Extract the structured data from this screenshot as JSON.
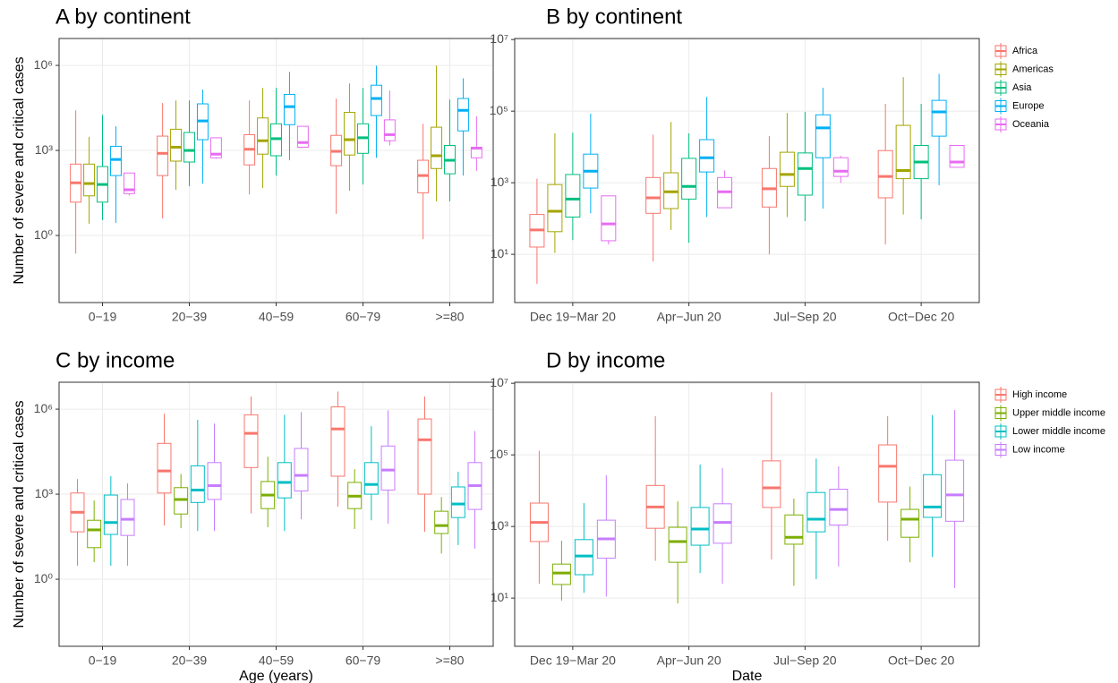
{
  "chart_data": [
    {
      "type": "box",
      "title": "A by continent",
      "ylabel": "Number of severe and critical cases",
      "log_scale": true,
      "grid": true,
      "categories": [
        "0−19",
        "20−39",
        "40−59",
        "60−79",
        ">=80"
      ],
      "ylim": [
        0.0043,
        8900000
      ],
      "yticks": [
        {
          "value": 1,
          "label": "10⁰"
        },
        {
          "value": 1000,
          "label": "10³"
        },
        {
          "value": 1000000,
          "label": "10⁶"
        }
      ],
      "series": [
        {
          "color": "#F8766D",
          "min": [
            0.23,
            4,
            28,
            5.8,
            0.74
          ],
          "q1": [
            15,
            130,
            310,
            290,
            32
          ],
          "median": [
            72,
            790,
            1100,
            930,
            130
          ],
          "q3": [
            330,
            3200,
            3600,
            3400,
            450
          ],
          "max": [
            26000,
            47000,
            58000,
            68000,
            8700
          ]
        },
        {
          "color": "#A3A500",
          "min": [
            2.6,
            41,
            47,
            38,
            16
          ],
          "q1": [
            25,
            420,
            740,
            690,
            230
          ],
          "median": [
            68,
            1300,
            2200,
            2400,
            650
          ],
          "q3": [
            330,
            5600,
            14000,
            22000,
            6600
          ],
          "max": [
            3000,
            58000,
            160000,
            230000,
            980000
          ]
        },
        {
          "color": "#00BF7D",
          "min": [
            3.5,
            55,
            130,
            63,
            16
          ],
          "q1": [
            15,
            390,
            650,
            790,
            150
          ],
          "median": [
            63,
            1000,
            2600,
            2800,
            450
          ],
          "q3": [
            270,
            4300,
            8700,
            8700,
            1500
          ],
          "max": [
            18000,
            58000,
            160000,
            160000,
            62000
          ]
        },
        {
          "color": "#00B0F6",
          "min": [
            2.8,
            68,
            450,
            550,
            130
          ],
          "q1": [
            130,
            2400,
            8100,
            17000,
            4900
          ],
          "median": [
            480,
            11000,
            35000,
            68000,
            26000
          ],
          "q3": [
            1400,
            44000,
            95000,
            200000,
            68000
          ],
          "max": [
            7100,
            140000,
            590000,
            980000,
            350000
          ]
        },
        {
          "color": "#E76BF3",
          "min": [
            26,
            510,
            1300,
            1500,
            190
          ],
          "q1": [
            30,
            550,
            1300,
            2200,
            550
          ],
          "median": [
            41,
            740,
            1900,
            3600,
            1200
          ],
          "q3": [
            160,
            2800,
            7100,
            12000,
            1300
          ],
          "max": [
            160,
            2800,
            7100,
            130000,
            16000
          ]
        }
      ]
    },
    {
      "type": "box",
      "title": "B by continent",
      "log_scale": true,
      "grid": true,
      "legend": "right",
      "categories": [
        "Dec 19−Mar 20",
        "Apr−Jun 20",
        "Jul−Sep 20",
        "Oct−Dec 20"
      ],
      "ylim": [
        0.45,
        10700000
      ],
      "yticks": [
        {
          "value": 10,
          "label": "10¹"
        },
        {
          "value": 1000,
          "label": "10³"
        },
        {
          "value": 100000,
          "label": "10⁵"
        },
        {
          "value": 10000000,
          "label": "10⁷"
        }
      ],
      "series": [
        {
          "name": "Africa",
          "color": "#F8766D",
          "min": [
            1.5,
            6.3,
            10,
            19
          ],
          "q1": [
            16,
            140,
            210,
            380
          ],
          "median": [
            48,
            380,
            680,
            1500
          ],
          "q3": [
            130,
            1400,
            2500,
            7900
          ],
          "max": [
            1300,
            22000,
            20000,
            160000
          ]
        },
        {
          "name": "Americas",
          "color": "#A3A500",
          "min": [
            11,
            48,
            110,
            130
          ],
          "q1": [
            43,
            190,
            790,
            1300
          ],
          "median": [
            160,
            560,
            1700,
            2200
          ],
          "q3": [
            890,
            1900,
            7100,
            40000
          ],
          "max": [
            24000,
            50000,
            89000,
            890000
          ]
        },
        {
          "name": "Asia",
          "color": "#00BF7D",
          "min": [
            25,
            21,
            85,
            95
          ],
          "q1": [
            110,
            350,
            450,
            1300
          ],
          "median": [
            350,
            790,
            2500,
            3800
          ],
          "q3": [
            1700,
            4800,
            6800,
            11000
          ],
          "max": [
            25000,
            24000,
            95000,
            160000
          ]
        },
        {
          "name": "Europe",
          "color": "#00B0F6",
          "min": [
            140,
            110,
            190,
            850
          ],
          "q1": [
            710,
            2000,
            5000,
            20000
          ],
          "median": [
            2100,
            5000,
            34000,
            95000
          ],
          "q3": [
            6300,
            16000,
            79000,
            200000
          ],
          "max": [
            85000,
            250000,
            450000,
            1100000
          ]
        },
        {
          "name": "Oceania",
          "color": "#E76BF3",
          "min": [
            19,
            200,
            1000,
            2700
          ],
          "q1": [
            24,
            200,
            1500,
            2700
          ],
          "median": [
            71,
            560,
            2100,
            3800
          ],
          "q3": [
            430,
            1400,
            5000,
            11000
          ],
          "max": [
            430,
            2200,
            5600,
            11000
          ]
        }
      ]
    },
    {
      "type": "box",
      "title": "C by income",
      "ylabel": "Number of severe and critical cases",
      "xlabel": "Age (years)",
      "log_scale": true,
      "grid": true,
      "categories": [
        "0−19",
        "20−39",
        "40−59",
        "60−79",
        ">=80"
      ],
      "ylim": [
        0.0043,
        8900000
      ],
      "yticks": [
        {
          "value": 1,
          "label": "10⁰"
        },
        {
          "value": 1000,
          "label": "10³"
        },
        {
          "value": 1000000,
          "label": "10⁶"
        }
      ],
      "series": [
        {
          "color": "#F8766D",
          "min": [
            3,
            78,
            210,
            360,
            47
          ],
          "q1": [
            47,
            1100,
            8700,
            4300,
            1000
          ],
          "median": [
            230,
            6600,
            140000,
            200000,
            83000
          ],
          "q3": [
            1100,
            62000,
            630000,
            1200000,
            450000
          ],
          "max": [
            3400,
            690000,
            2800000,
            4200000,
            2800000
          ]
        },
        {
          "color": "#7CAE00",
          "min": [
            4,
            63,
            68,
            59,
            8.1
          ],
          "q1": [
            13,
            200,
            310,
            310,
            41
          ],
          "median": [
            55,
            650,
            930,
            850,
            78
          ],
          "q3": [
            120,
            1700,
            2800,
            2600,
            250
          ],
          "max": [
            600,
            5200,
            21000,
            7600,
            790
          ]
        },
        {
          "color": "#00BFC4",
          "min": [
            3,
            50,
            50,
            120,
            16
          ],
          "q1": [
            38,
            510,
            740,
            1000,
            150
          ],
          "median": [
            100,
            1400,
            2600,
            2200,
            450
          ],
          "q3": [
            930,
            10000,
            13000,
            13000,
            1800
          ],
          "max": [
            4300,
            420000,
            630000,
            250000,
            6200
          ]
        },
        {
          "color": "#C77CFF",
          "min": [
            3,
            50,
            130,
            91,
            12
          ],
          "q1": [
            35,
            650,
            1300,
            1400,
            290
          ],
          "median": [
            130,
            2000,
            4600,
            7100,
            2000
          ],
          "q3": [
            650,
            13000,
            41000,
            50000,
            13000
          ],
          "max": [
            2400,
            310000,
            790000,
            910000,
            170000
          ]
        }
      ]
    },
    {
      "type": "box",
      "title": "D by income",
      "xlabel": "Date",
      "log_scale": true,
      "grid": true,
      "legend": "right",
      "categories": [
        "Dec 19−Mar 20",
        "Apr−Jun 20",
        "Jul−Sep 20",
        "Oct−Dec 20"
      ],
      "ylim": [
        0.45,
        10700000
      ],
      "yticks": [
        {
          "value": 10,
          "label": "10¹"
        },
        {
          "value": 1000,
          "label": "10³"
        },
        {
          "value": 100000,
          "label": "10⁵"
        },
        {
          "value": 10000000,
          "label": "10⁷"
        }
      ],
      "series": [
        {
          "name": "High income",
          "color": "#F8766D",
          "min": [
            25,
            110,
            120,
            400
          ],
          "q1": [
            380,
            890,
            3400,
            4800
          ],
          "median": [
            1300,
            3500,
            12000,
            48000
          ],
          "q3": [
            4500,
            14000,
            68000,
            190000
          ],
          "max": [
            130000,
            1200000,
            5600000,
            1200000
          ]
        },
        {
          "name": "Upper middle income",
          "color": "#7CAE00",
          "min": [
            8.5,
            7.1,
            22,
            100
          ],
          "q1": [
            24,
            100,
            320,
            500
          ],
          "median": [
            50,
            380,
            500,
            1600
          ],
          "q3": [
            89,
            950,
            2100,
            3000
          ],
          "max": [
            400,
            5000,
            6000,
            13000
          ]
        },
        {
          "name": "Lower middle income",
          "color": "#00BFC4",
          "min": [
            14,
            50,
            34,
            140
          ],
          "q1": [
            45,
            300,
            710,
            1800
          ],
          "median": [
            150,
            850,
            1600,
            3500
          ],
          "q3": [
            430,
            3400,
            8900,
            28000
          ],
          "max": [
            4500,
            54000,
            79000,
            1300000
          ]
        },
        {
          "name": "Low income",
          "color": "#C77CFF",
          "min": [
            11,
            25,
            76,
            19
          ],
          "q1": [
            130,
            340,
            1100,
            1400
          ],
          "median": [
            450,
            1300,
            3000,
            7600
          ],
          "q3": [
            1500,
            4300,
            11000,
            71000
          ],
          "max": [
            27000,
            43000,
            48000,
            1800000
          ]
        }
      ]
    }
  ]
}
